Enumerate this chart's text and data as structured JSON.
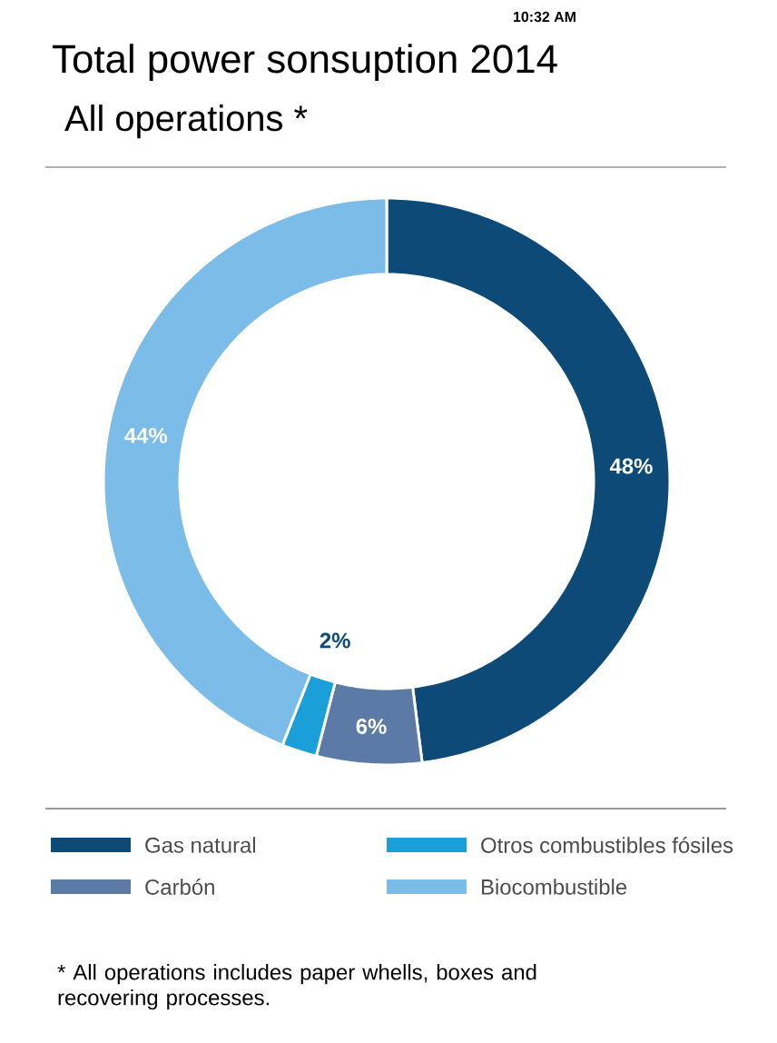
{
  "chart_data": {
    "type": "donut",
    "title": "Total power sonsuption 2014",
    "subtitle": "All operations *",
    "categories": [
      "Gas natural",
      "Carbón",
      "Otros combustibles fósiles",
      "Biocombustible"
    ],
    "values": [
      48,
      6,
      2,
      44
    ],
    "colors": [
      "#0d4a77",
      "#5b7ba6",
      "#1a9fd9",
      "#7cbce8"
    ],
    "value_labels": [
      "48%",
      "6%",
      "2%",
      "44%"
    ],
    "legend": "bottom",
    "annotations": [
      "10:32 AM",
      "* All operations includes paper whells, boxes and recovering processes."
    ]
  }
}
